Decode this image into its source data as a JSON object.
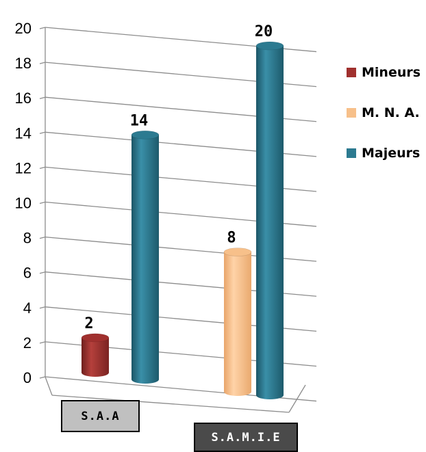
{
  "chart_data": {
    "type": "bar",
    "categories": [
      "S.A.A",
      "S.A.M.I.E"
    ],
    "series": [
      {
        "name": "Mineurs",
        "values": [
          2,
          null
        ],
        "color": "#a0302e"
      },
      {
        "name": "M. N. A.",
        "values": [
          null,
          8
        ],
        "color": "#f7c08a"
      },
      {
        "name": "Majeurs",
        "values": [
          14,
          20
        ],
        "color": "#2c7a90"
      }
    ],
    "ylim": [
      0,
      20
    ],
    "yticks": [
      0,
      2,
      4,
      6,
      8,
      10,
      12,
      14,
      16,
      18,
      20
    ],
    "grid": true,
    "legend_position": "right"
  }
}
